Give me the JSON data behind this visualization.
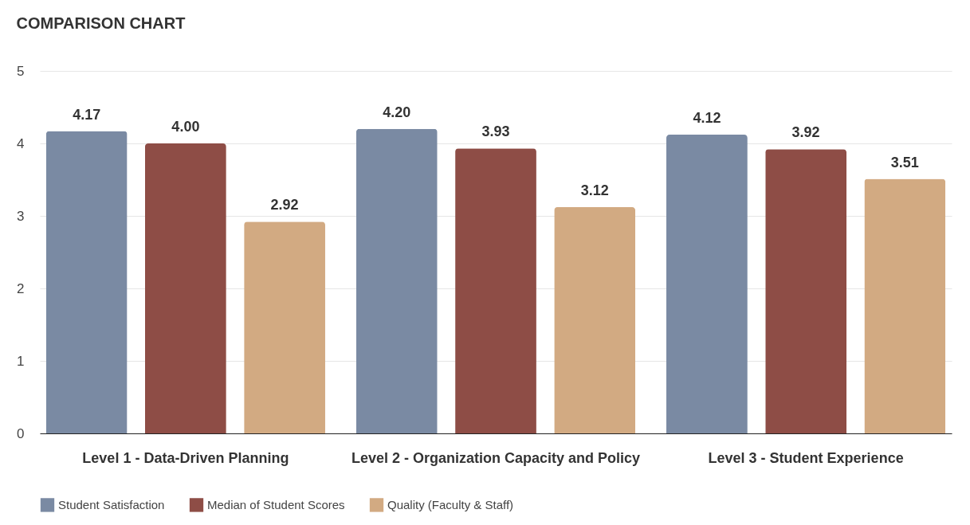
{
  "chart_data": {
    "type": "bar",
    "title": "COMPARISON CHART",
    "categories": [
      "Level 1 - Data-Driven Planning",
      "Level 2 - Organization Capacity and Policy",
      "Level 3 - Student Experience"
    ],
    "series": [
      {
        "name": "Student Satisfaction",
        "color": "#7a8aa3",
        "values": [
          4.17,
          4.2,
          4.12
        ],
        "value_labels": [
          "4.17",
          "4.20",
          "4.12"
        ]
      },
      {
        "name": "Median of Student Scores",
        "color": "#8e4d46",
        "values": [
          4.0,
          3.93,
          3.92
        ],
        "value_labels": [
          "4.00",
          "3.93",
          "3.92"
        ]
      },
      {
        "name": "Quality (Faculty & Staff)",
        "color": "#d2aa82",
        "values": [
          2.92,
          3.12,
          3.51
        ],
        "value_labels": [
          "2.92",
          "3.12",
          "3.51"
        ]
      }
    ],
    "ylim": [
      0,
      5
    ],
    "yticks": [
      0,
      1,
      2,
      3,
      4,
      5
    ],
    "grid": "y",
    "legend": "bottom"
  }
}
